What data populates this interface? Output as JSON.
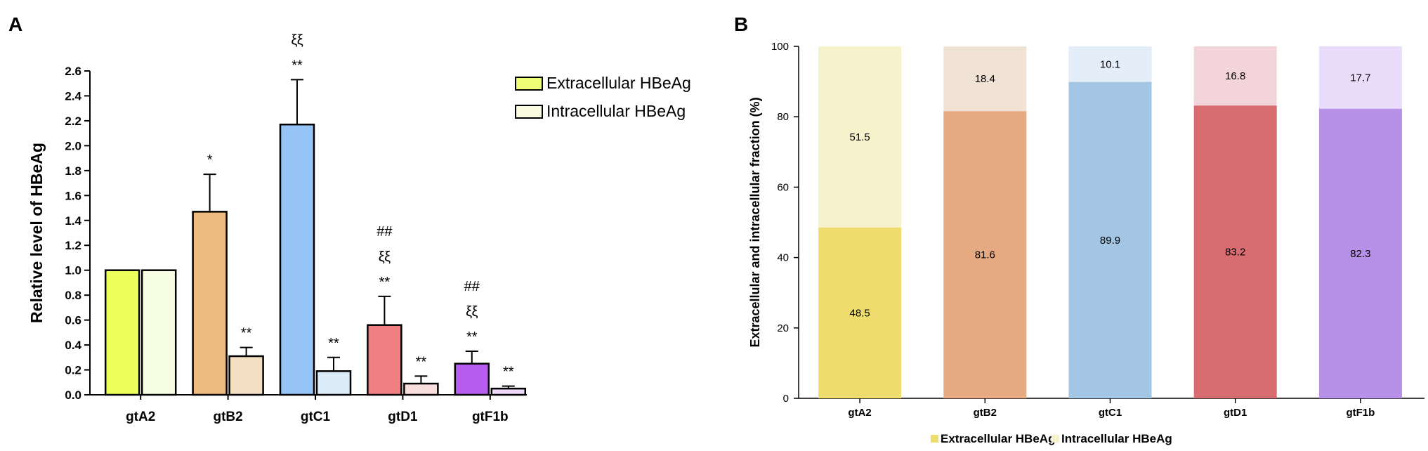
{
  "chart_data": [
    {
      "panel": "A",
      "type": "bar",
      "ylabel": "Relative level of HBeAg",
      "xlabel": "",
      "ylim": [
        0,
        2.6
      ],
      "yticks": [
        "0.0",
        "0.2",
        "0.4",
        "0.6",
        "0.8",
        "1.0",
        "1.2",
        "1.4",
        "1.6",
        "1.8",
        "2.0",
        "2.2",
        "2.4",
        "2.6"
      ],
      "categories": [
        "gtA2",
        "gtB2",
        "gtC1",
        "gtD1",
        "gtF1b"
      ],
      "legend_position": "top-right",
      "series": [
        {
          "name": "Extracellular HBeAg",
          "values": [
            1.0,
            1.47,
            2.17,
            0.56,
            0.25
          ],
          "errors": [
            0,
            0.3,
            0.36,
            0.23,
            0.1
          ],
          "colors": [
            "#eeff5c",
            "#edbb80",
            "#97c4f6",
            "#f07f82",
            "#b85cf0"
          ],
          "legend_color": "#eeff77",
          "annotations": [
            [],
            [
              "*"
            ],
            [
              "ξξ",
              "**"
            ],
            [
              "##",
              "ξξ",
              "**"
            ],
            [
              "##",
              "ξξ",
              "**"
            ]
          ]
        },
        {
          "name": "Intracellular HBeAg",
          "values": [
            1.0,
            0.31,
            0.19,
            0.09,
            0.05
          ],
          "errors": [
            0,
            0.07,
            0.11,
            0.06,
            0.02
          ],
          "colors": [
            "#f6fde3",
            "#f4dfc4",
            "#dcebf8",
            "#f9dede",
            "#eed9f8"
          ],
          "legend_color": "#fafde0",
          "annotations": [
            [],
            [
              "**"
            ],
            [
              "**"
            ],
            [
              "**"
            ],
            [
              "**"
            ]
          ]
        }
      ]
    },
    {
      "panel": "B",
      "type": "bar",
      "stacked": true,
      "ylabel": "Extracellular and intracellular fraction (%)",
      "xlabel": "",
      "ylim": [
        0,
        100
      ],
      "yticks": [
        "0",
        "20",
        "40",
        "60",
        "80",
        "100"
      ],
      "categories": [
        "gtA2",
        "gtB2",
        "gtC1",
        "gtD1",
        "gtF1b"
      ],
      "legend_position": "bottom",
      "series": [
        {
          "name": "Extracellular HBeAg",
          "values": [
            48.5,
            81.6,
            89.9,
            83.2,
            82.3
          ],
          "labels": [
            "48.5",
            "81.6",
            "89.9",
            "83.2",
            "82.3"
          ],
          "colors": [
            "#eedc6c",
            "#e6aa82",
            "#a2c6e3",
            "#d76c71",
            "#b791e8"
          ],
          "legend_color": "#eedc6c"
        },
        {
          "name": "Intracellular HBeAg",
          "values": [
            51.5,
            18.4,
            10.1,
            16.8,
            17.7
          ],
          "labels": [
            "51.5",
            "18.4",
            "10.1",
            "16.8",
            "17.7"
          ],
          "colors": [
            "#f6f2cc",
            "#f1e2d6",
            "#e3eef8",
            "#f3d4da",
            "#e8dcfa"
          ],
          "legend_color": "#f6f2cc"
        }
      ]
    }
  ],
  "panel_labels": {
    "a": "A",
    "b": "B"
  }
}
